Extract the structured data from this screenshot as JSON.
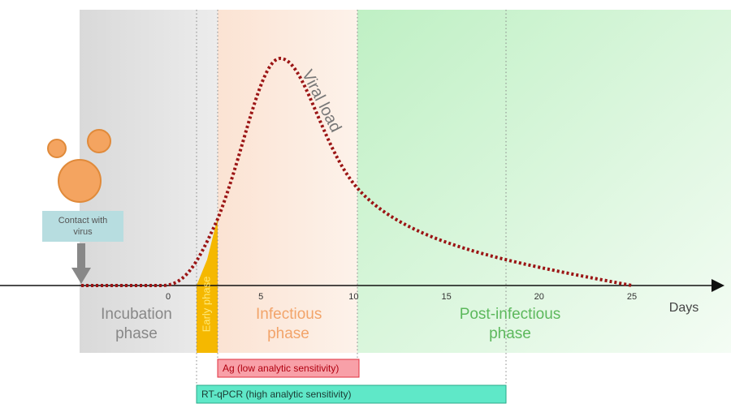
{
  "phases": {
    "incubation": "Incubation phase",
    "early": "Early phase",
    "infectious": "Infectious phase",
    "post_infectious": "Post-infectious phase"
  },
  "curve_label": "Viral load",
  "contact_label": "Contact with virus",
  "axis": {
    "label": "Days",
    "ticks": [
      0,
      5,
      10,
      15,
      20,
      25
    ]
  },
  "tests": {
    "ag": "Ag (low analytic sensitivity)",
    "rtqpcr": "RT-qPCR (high analytic sensitivity)"
  }
}
